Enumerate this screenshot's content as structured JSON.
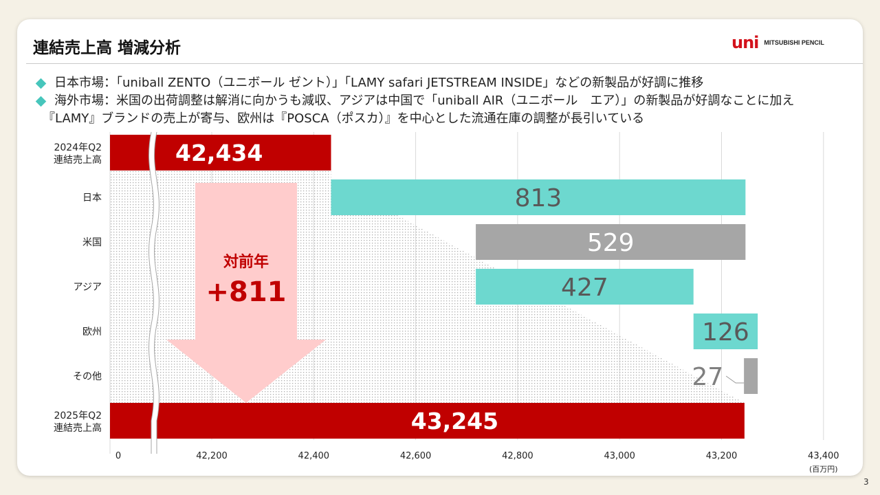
{
  "slide": {
    "title": "連結売上高 増減分析",
    "logo_mark": "uni",
    "logo_text": "MITSUBISHI PENCIL",
    "page_number": "3"
  },
  "bullets": [
    "日本市場：「uniball ZENTO（ユニボール ゼント）」「LAMY safari JETSTREAM INSIDE」などの新製品が好調に推移",
    "海外市場：米国の出荷調整は解消に向かうも減収、アジアは中国で「uniball AIR（ユニボール　エア）」の新製品が好調なことに加え",
    "『LAMY』ブランドの売上が寄与、欧州は『POSCA（ポスカ）』を中心とした流通在庫の調整が長引いている"
  ],
  "chart_data": {
    "type": "bar",
    "subtype": "waterfall",
    "unit": "(百万円)",
    "categories": [
      "2024年Q2\n連結売上高",
      "日本",
      "米国",
      "アジア",
      "欧州",
      "その他",
      "2025年Q2\n連結売上高"
    ],
    "items": [
      {
        "label": "2024年Q2\n連結売上高",
        "kind": "total",
        "value": 42434,
        "display": "42,434",
        "color": "#c00000"
      },
      {
        "label": "日本",
        "kind": "increase",
        "value": 813,
        "display": "813",
        "color": "#6dd8cf"
      },
      {
        "label": "米国",
        "kind": "decrease",
        "value": -529,
        "display": "529",
        "color": "#a6a6a6"
      },
      {
        "label": "アジア",
        "kind": "increase",
        "value": 427,
        "display": "427",
        "color": "#6dd8cf"
      },
      {
        "label": "欧州",
        "kind": "increase",
        "value": 126,
        "display": "126",
        "color": "#6dd8cf"
      },
      {
        "label": "その他",
        "kind": "decrease",
        "value": -27,
        "display": "27",
        "color": "#a6a6a6"
      },
      {
        "label": "2025年Q2\n連結売上高",
        "kind": "total",
        "value": 43245,
        "display": "43,245",
        "color": "#c00000"
      }
    ],
    "x_ticks": [
      "0",
      "42,200",
      "42,400",
      "42,600",
      "42,800",
      "43,000",
      "43,200",
      "43,400"
    ],
    "x_tick_values": [
      0,
      42200,
      42400,
      42600,
      42800,
      43000,
      43200,
      43400
    ],
    "xlim": [
      42200,
      43400
    ],
    "axis_break": true,
    "grid": true,
    "annotation": {
      "label": "対前年",
      "value": "+811"
    }
  }
}
